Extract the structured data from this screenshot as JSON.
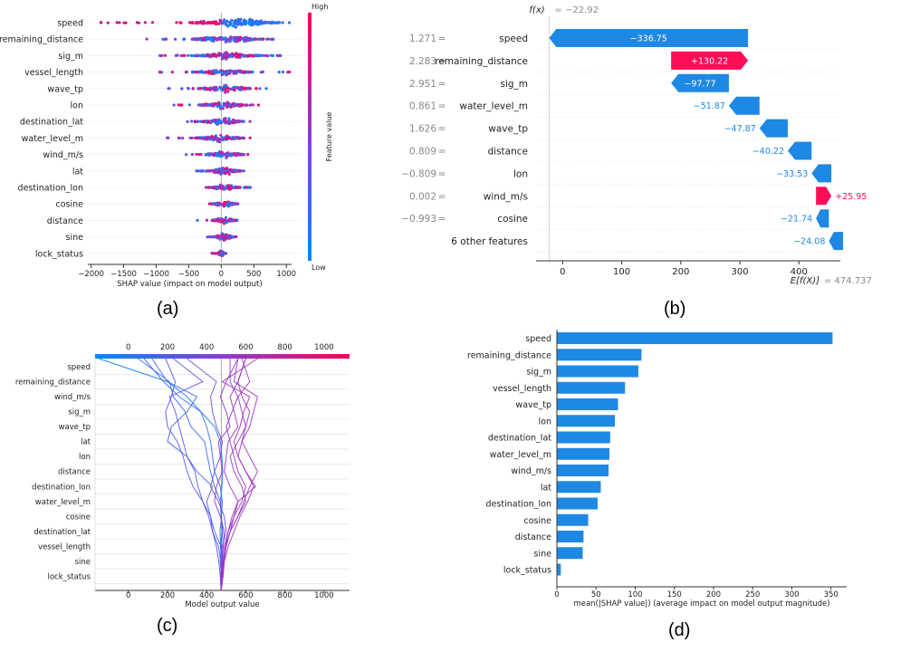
{
  "colors": {
    "blue": "#1e88e5",
    "red": "#ff0d57",
    "axis": "#333333",
    "grid": "#dddddd",
    "muted": "#888888"
  },
  "panels": {
    "a": {
      "label": "(a)"
    },
    "b": {
      "label": "(b)"
    },
    "c": {
      "label": "(c)"
    },
    "d": {
      "label": "(d)"
    }
  },
  "chart_data": [
    {
      "type": "scatter",
      "panel": "a",
      "features": [
        "speed",
        "remaining_distance",
        "sig_m",
        "vessel_length",
        "wave_tp",
        "lon",
        "destination_lat",
        "water_level_m",
        "wind_m/s",
        "lat",
        "destination_lon",
        "cosine",
        "distance",
        "sine",
        "lock_status"
      ],
      "spread": [
        {
          "min": -1850,
          "max": 1050,
          "core": [
            -500,
            900
          ]
        },
        {
          "min": -1150,
          "max": 850,
          "core": [
            -450,
            600
          ]
        },
        {
          "min": -950,
          "max": 950,
          "core": [
            -400,
            600
          ]
        },
        {
          "min": -950,
          "max": 1050,
          "core": [
            -450,
            500
          ]
        },
        {
          "min": -850,
          "max": 750,
          "core": [
            -350,
            450
          ]
        },
        {
          "min": -850,
          "max": 650,
          "core": [
            -350,
            400
          ]
        },
        {
          "min": -550,
          "max": 500,
          "core": [
            -300,
            350
          ]
        },
        {
          "min": -850,
          "max": 450,
          "core": [
            -400,
            350
          ]
        },
        {
          "min": -550,
          "max": 450,
          "core": [
            -250,
            350
          ]
        },
        {
          "min": -400,
          "max": 350,
          "core": [
            -200,
            300
          ]
        },
        {
          "min": -350,
          "max": 450,
          "core": [
            -200,
            300
          ]
        },
        {
          "min": -300,
          "max": 350,
          "core": [
            -150,
            250
          ]
        },
        {
          "min": -450,
          "max": 300,
          "core": [
            -150,
            250
          ]
        },
        {
          "min": -250,
          "max": 250,
          "core": [
            -120,
            200
          ]
        },
        {
          "min": -150,
          "max": 100,
          "core": [
            -50,
            50
          ]
        }
      ],
      "xlabel": "SHAP value (impact on model output)",
      "xticks": [
        -2000,
        -1500,
        -1000,
        -500,
        0,
        500,
        1000
      ],
      "xlim": [
        -2050,
        1080
      ],
      "colorbar": {
        "label": "Feature value",
        "high": "High",
        "low": "Low"
      }
    },
    {
      "type": "bar",
      "panel": "b",
      "features": [
        "speed",
        "remaining_distance",
        "sig_m",
        "water_level_m",
        "wave_tp",
        "distance",
        "lon",
        "wind_m/s",
        "cosine",
        "6 other features"
      ],
      "feature_values": [
        "1.271",
        "2.283",
        "2.951",
        "0.861",
        "1.626",
        "0.809",
        "−0.809",
        "0.002",
        "−0.993",
        ""
      ],
      "values": [
        -336.75,
        130.22,
        -97.77,
        -51.87,
        -47.87,
        -40.22,
        -33.53,
        25.95,
        -21.74,
        -24.08
      ],
      "value_labels": [
        "−336.75",
        "+130.22",
        "−97.77",
        "−51.87",
        "−47.87",
        "−40.22",
        "−33.53",
        "+25.95",
        "−21.74",
        "−24.08"
      ],
      "fx_label": "f(x)",
      "fx_value": "= −22.92",
      "efx_label": "E[f(X)]",
      "efx_value": "= 474.737",
      "base_value": 474.737,
      "xticks": [
        0,
        100,
        200,
        300,
        400
      ],
      "xlim": [
        -45,
        470
      ]
    },
    {
      "type": "line",
      "panel": "c",
      "features": [
        "speed",
        "remaining_distance",
        "wind_m/s",
        "sig_m",
        "wave_tp",
        "lat",
        "lon",
        "distance",
        "destination_lon",
        "water_level_m",
        "cosine",
        "destination_lat",
        "vessel_length",
        "sine",
        "lock_status"
      ],
      "xlabel": "Model output value",
      "xticks": [
        0,
        200,
        400,
        600,
        800,
        1000
      ],
      "xlim": [
        -170,
        1130
      ],
      "base_value": 474.737,
      "series": [
        {
          "values": [
            474,
            472,
            478,
            470,
            480,
            474,
            470,
            478,
            482,
            478,
            470,
            440,
            370,
            300,
            200,
            -150
          ]
        },
        {
          "values": [
            474,
            474,
            476,
            472,
            468,
            476,
            480,
            470,
            440,
            430,
            420,
            400,
            370,
            260,
            180,
            80
          ]
        },
        {
          "values": [
            474,
            470,
            480,
            476,
            482,
            476,
            470,
            440,
            420,
            404,
            390,
            320,
            290,
            230,
            210,
            50
          ]
        },
        {
          "values": [
            474,
            476,
            470,
            474,
            440,
            420,
            400,
            430,
            350,
            300,
            200,
            220,
            300,
            350,
            200,
            120
          ]
        },
        {
          "values": [
            474,
            478,
            472,
            460,
            430,
            420,
            380,
            330,
            300,
            280,
            250,
            200,
            190,
            220,
            240,
            190
          ]
        },
        {
          "values": [
            474,
            470,
            462,
            450,
            430,
            410,
            380,
            356,
            340,
            300,
            280,
            260,
            240,
            210,
            380,
            230
          ]
        },
        {
          "values": [
            474,
            476,
            470,
            480,
            500,
            490,
            460,
            420,
            440,
            470,
            480,
            450,
            430,
            420,
            450,
            300
          ]
        },
        {
          "values": [
            474,
            472,
            478,
            484,
            490,
            470,
            440,
            450,
            480,
            470,
            460,
            520,
            500,
            470,
            500,
            560
          ]
        },
        {
          "values": [
            474,
            478,
            482,
            490,
            510,
            540,
            560,
            520,
            490,
            500,
            510,
            560,
            540,
            520,
            560,
            600
          ]
        },
        {
          "values": [
            474,
            476,
            484,
            500,
            520,
            560,
            600,
            580,
            540,
            520,
            560,
            600,
            580,
            560,
            620,
            580
          ]
        },
        {
          "values": [
            474,
            480,
            490,
            510,
            540,
            570,
            610,
            640,
            600,
            560,
            580,
            620,
            640,
            660,
            540,
            560
          ]
        },
        {
          "values": [
            474,
            482,
            488,
            500,
            520,
            560,
            590,
            620,
            660,
            620,
            580,
            600,
            620,
            580,
            560,
            600
          ]
        },
        {
          "values": [
            474,
            484,
            490,
            496,
            510,
            530,
            560,
            650,
            600,
            560,
            540,
            570,
            590,
            620,
            480,
            660
          ]
        },
        {
          "values": [
            474,
            478,
            486,
            498,
            520,
            540,
            580,
            600,
            560,
            540,
            520,
            500,
            530,
            560,
            520,
            520
          ]
        }
      ]
    },
    {
      "type": "bar",
      "panel": "d",
      "categories": [
        "speed",
        "remaining_distance",
        "sig_m",
        "vessel_length",
        "wave_tp",
        "lon",
        "destination_lat",
        "water_level_m",
        "wind_m/s",
        "lat",
        "destination_lon",
        "cosine",
        "distance",
        "sine",
        "lock_status"
      ],
      "values": [
        352,
        108,
        104,
        87,
        78,
        74,
        68,
        67,
        66,
        56,
        52,
        40,
        34,
        33,
        5
      ],
      "xlabel": "mean(|SHAP value|) (average impact on model output magnitude)",
      "xticks": [
        0,
        50,
        100,
        150,
        200,
        250,
        300,
        350
      ],
      "xlim": [
        0,
        370
      ]
    }
  ]
}
